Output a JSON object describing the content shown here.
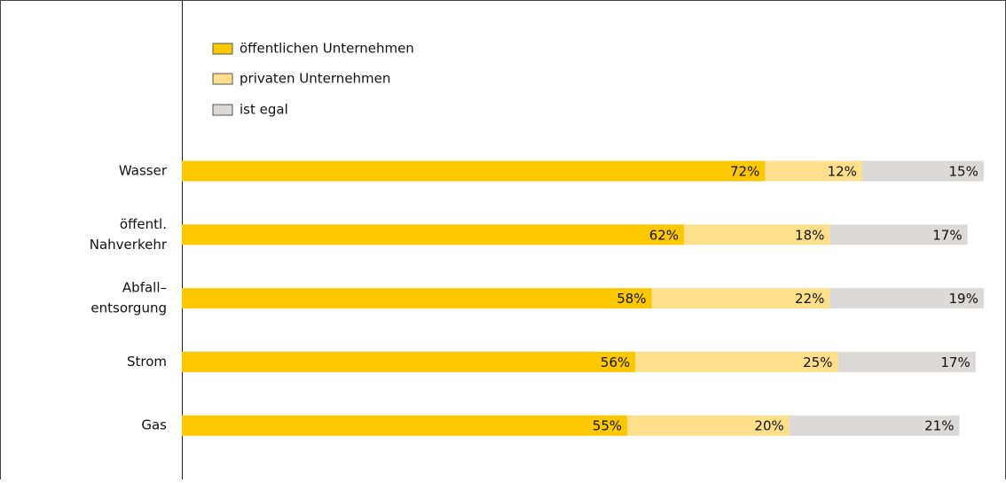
{
  "chart_data": {
    "type": "stacked-barh",
    "categories": [
      [
        "Wasser"
      ],
      [
        "öffentl.",
        "Nahverkehr"
      ],
      [
        "Abfall–",
        "entsorgung"
      ],
      [
        "Strom"
      ],
      [
        "Gas"
      ]
    ],
    "series": [
      {
        "name": "öffentlichen Unternehmen",
        "color": "#fdc800",
        "values": [
          72,
          62,
          58,
          56,
          55
        ],
        "value_labels": [
          "72%",
          "62%",
          "58%",
          "56%",
          "55%"
        ]
      },
      {
        "name": "privaten Unternehmen",
        "color": "#fee08c",
        "values": [
          12,
          18,
          22,
          25,
          20
        ],
        "value_labels": [
          "12%",
          "18%",
          "22%",
          "25%",
          "20%"
        ]
      },
      {
        "name": "ist egal",
        "color": "#dcd9d6",
        "values": [
          15,
          17,
          19,
          17,
          21
        ],
        "value_labels": [
          "15%",
          "17%",
          "19%",
          "17%",
          "21%"
        ]
      }
    ],
    "xlim": [
      0,
      100
    ],
    "legend": "top-left"
  }
}
